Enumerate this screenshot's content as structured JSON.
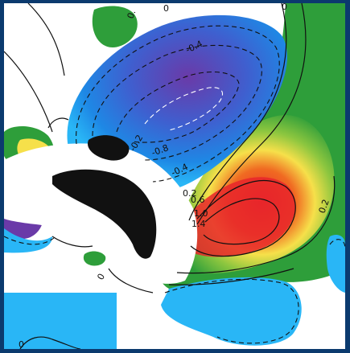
{
  "contour_labels": {
    "top_zero": "0",
    "top_small": "0.",
    "top_right_zero": "0",
    "neg_04_upper": "-0.4",
    "neg_02": "-0.2",
    "neg_08": "-0.8",
    "neg_04_lower": "-0.4",
    "pos_02_left": "0.2",
    "pos_06": "0.6",
    "pos_10": "1.0",
    "pos_14": "1.4",
    "pos_02_right": "0.2",
    "bottom_zero": "0",
    "bottom_left_zero": "0"
  },
  "colors": {
    "frame": "#0b3a6e",
    "strong_negative": "#6a3aa8",
    "negative": "#1e88e5",
    "weak_negative": "#29b6f6",
    "weak_positive": "#2e9e3a",
    "positive": "#f6e04a",
    "strong_positive": "#e8262a",
    "land": "#111111"
  }
}
